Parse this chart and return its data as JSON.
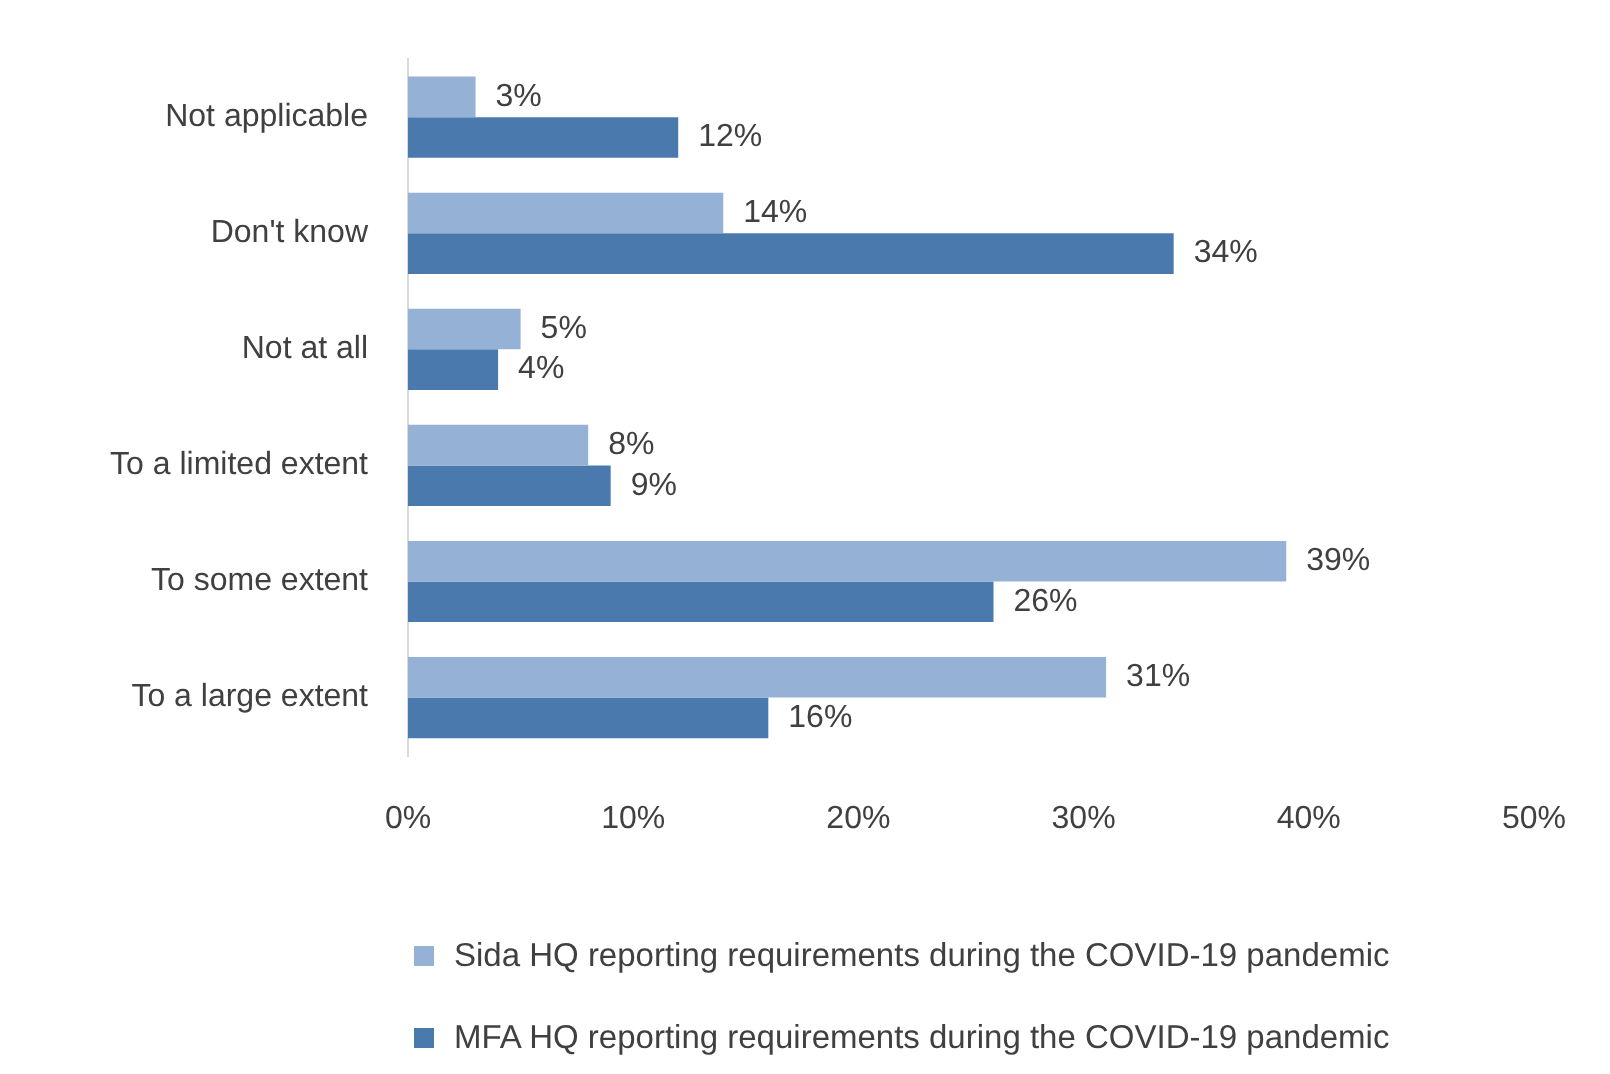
{
  "chart_data": {
    "type": "bar",
    "orientation": "horizontal",
    "categories": [
      "Not applicable",
      "Don't know",
      "Not at all",
      "To a limited extent",
      "To some extent",
      "To a large extent"
    ],
    "series": [
      {
        "name": "Sida HQ reporting requirements during the COVID-19 pandemic",
        "color": "#95b1d6",
        "values": [
          3,
          14,
          5,
          8,
          39,
          31
        ],
        "value_labels": [
          "3%",
          "14%",
          "5%",
          "8%",
          "39%",
          "31%"
        ]
      },
      {
        "name": "MFA HQ reporting requirements during the COVID-19 pandemic",
        "color": "#4a7aad",
        "values": [
          12,
          34,
          4,
          9,
          26,
          16
        ],
        "value_labels": [
          "12%",
          "34%",
          "4%",
          "9%",
          "26%",
          "16%"
        ]
      }
    ],
    "xlim": [
      0,
      50
    ],
    "xticks": [
      {
        "value": 0,
        "label": "0%"
      },
      {
        "value": 10,
        "label": "10%"
      },
      {
        "value": 20,
        "label": "20%"
      },
      {
        "value": 30,
        "label": "30%"
      },
      {
        "value": 40,
        "label": "40%"
      },
      {
        "value": 50,
        "label": "50%"
      }
    ],
    "grid": false,
    "legend": "bottom"
  }
}
